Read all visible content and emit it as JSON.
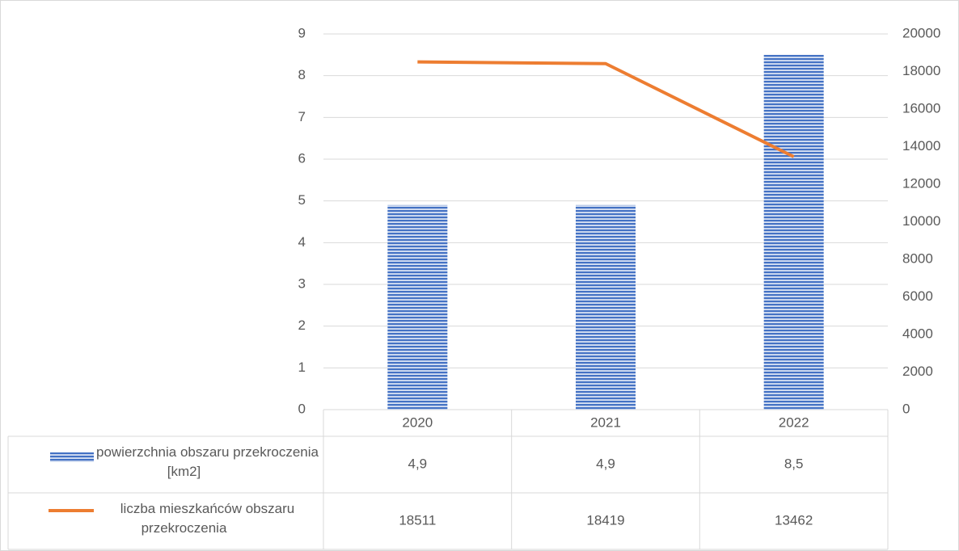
{
  "chart_data": {
    "type": "bar-line",
    "categories": [
      "2020",
      "2021",
      "2022"
    ],
    "series": [
      {
        "name": "powierzchnia obszaru przekroczenia [km2]",
        "type": "bar",
        "color": "#4472c4",
        "values": [
          4.9,
          4.9,
          8.5
        ],
        "value_labels": [
          "4,9",
          "4,9",
          "8,5"
        ]
      },
      {
        "name": "liczba mieszkańców obszaru przekroczenia",
        "type": "line",
        "color": "#ed7d31",
        "axis": "y2",
        "values": [
          18511,
          18419,
          13462
        ]
      }
    ],
    "ylim": [
      0,
      9
    ],
    "yticks": [
      0,
      1,
      2,
      3,
      4,
      5,
      6,
      7,
      8,
      9
    ],
    "y2lim": [
      0,
      20000
    ],
    "y2ticks": [
      0,
      2000,
      4000,
      6000,
      8000,
      10000,
      12000,
      14000,
      16000,
      18000,
      20000
    ],
    "grid": true,
    "data_table": true
  }
}
